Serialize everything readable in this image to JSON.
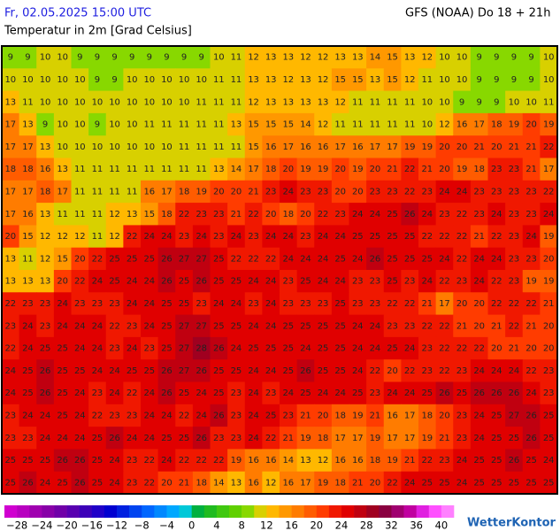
{
  "header": {
    "datetime": "Fr, 02.05.2025 15:00 UTC",
    "model": "GFS (NOAA) Do 18 + 21h",
    "title": "Temperatur in 2m [Grad Celsius]"
  },
  "map": {
    "values": [
      [
        9,
        9,
        10,
        10,
        9,
        9,
        9,
        9,
        9,
        9,
        9,
        9,
        10,
        11,
        12,
        13,
        13,
        12,
        12,
        13,
        13,
        14,
        15,
        13,
        12,
        10,
        10,
        9,
        9,
        9,
        9,
        10
      ],
      [
        10,
        10,
        10,
        10,
        10,
        9,
        9,
        10,
        10,
        10,
        10,
        10,
        11,
        11,
        13,
        13,
        12,
        13,
        12,
        15,
        15,
        13,
        15,
        12,
        11,
        10,
        10,
        9,
        9,
        9,
        9,
        10
      ],
      [
        13,
        11,
        10,
        10,
        10,
        10,
        10,
        10,
        10,
        10,
        10,
        11,
        11,
        11,
        12,
        13,
        13,
        13,
        13,
        12,
        11,
        11,
        11,
        11,
        10,
        10,
        9,
        9,
        9,
        10,
        10,
        11
      ],
      [
        17,
        13,
        9,
        10,
        10,
        9,
        10,
        10,
        11,
        11,
        11,
        11,
        11,
        13,
        15,
        15,
        15,
        14,
        12,
        11,
        11,
        11,
        11,
        11,
        10,
        12,
        16,
        17,
        18,
        19,
        20,
        19
      ],
      [
        17,
        17,
        13,
        10,
        10,
        10,
        10,
        10,
        10,
        10,
        11,
        11,
        11,
        11,
        15,
        16,
        17,
        16,
        16,
        17,
        16,
        17,
        17,
        19,
        19,
        20,
        20,
        21,
        20,
        21,
        21,
        22
      ],
      [
        18,
        18,
        16,
        13,
        11,
        11,
        11,
        11,
        11,
        11,
        11,
        11,
        13,
        14,
        17,
        18,
        20,
        19,
        19,
        20,
        19,
        20,
        21,
        22,
        21,
        20,
        19,
        18,
        23,
        23,
        21,
        17
      ],
      [
        17,
        17,
        18,
        17,
        11,
        11,
        11,
        11,
        16,
        17,
        18,
        19,
        20,
        20,
        21,
        23,
        24,
        23,
        23,
        20,
        20,
        23,
        23,
        22,
        23,
        24,
        24,
        23,
        23,
        23,
        23,
        22
      ],
      [
        17,
        16,
        13,
        11,
        11,
        11,
        12,
        13,
        15,
        18,
        22,
        23,
        23,
        21,
        22,
        20,
        18,
        20,
        22,
        23,
        24,
        24,
        25,
        26,
        24,
        23,
        22,
        23,
        24,
        23,
        23,
        24
      ],
      [
        20,
        15,
        12,
        12,
        12,
        11,
        12,
        22,
        24,
        24,
        23,
        24,
        23,
        24,
        23,
        24,
        24,
        23,
        24,
        24,
        25,
        25,
        25,
        25,
        22,
        22,
        22,
        21,
        22,
        23,
        24,
        19
      ],
      [
        13,
        11,
        12,
        15,
        20,
        22,
        25,
        25,
        25,
        26,
        27,
        27,
        25,
        22,
        22,
        22,
        24,
        24,
        24,
        25,
        24,
        26,
        25,
        25,
        25,
        24,
        22,
        24,
        24,
        23,
        23,
        20
      ],
      [
        13,
        13,
        13,
        20,
        22,
        24,
        25,
        24,
        24,
        26,
        25,
        26,
        25,
        25,
        24,
        24,
        23,
        25,
        24,
        24,
        23,
        23,
        25,
        23,
        24,
        22,
        23,
        24,
        22,
        23,
        19,
        19
      ],
      [
        22,
        23,
        23,
        24,
        23,
        23,
        23,
        24,
        24,
        25,
        25,
        23,
        24,
        24,
        23,
        24,
        23,
        23,
        23,
        25,
        23,
        23,
        22,
        22,
        21,
        17,
        20,
        20,
        22,
        22,
        22,
        21
      ],
      [
        23,
        24,
        23,
        24,
        24,
        24,
        22,
        23,
        24,
        25,
        27,
        27,
        25,
        25,
        24,
        24,
        25,
        25,
        25,
        25,
        24,
        24,
        23,
        23,
        22,
        22,
        21,
        20,
        21,
        22,
        21,
        20
      ],
      [
        22,
        24,
        25,
        25,
        24,
        24,
        23,
        24,
        23,
        25,
        27,
        28,
        26,
        24,
        25,
        25,
        25,
        24,
        25,
        25,
        24,
        24,
        25,
        24,
        23,
        22,
        22,
        22,
        20,
        21,
        20,
        20
      ],
      [
        24,
        25,
        26,
        25,
        25,
        24,
        24,
        25,
        25,
        26,
        27,
        26,
        25,
        25,
        24,
        24,
        25,
        26,
        25,
        25,
        24,
        22,
        20,
        22,
        23,
        22,
        23,
        24,
        24,
        24,
        22,
        23
      ],
      [
        24,
        25,
        26,
        25,
        24,
        23,
        24,
        22,
        24,
        26,
        25,
        24,
        25,
        23,
        24,
        23,
        24,
        25,
        24,
        24,
        25,
        23,
        24,
        24,
        25,
        26,
        25,
        26,
        26,
        26,
        24,
        23
      ],
      [
        23,
        24,
        24,
        25,
        24,
        22,
        23,
        23,
        24,
        24,
        22,
        24,
        26,
        23,
        24,
        25,
        23,
        21,
        20,
        18,
        19,
        21,
        16,
        17,
        18,
        20,
        23,
        24,
        25,
        27,
        26,
        25
      ],
      [
        23,
        23,
        24,
        24,
        24,
        25,
        26,
        24,
        24,
        25,
        25,
        26,
        23,
        23,
        24,
        22,
        21,
        19,
        18,
        17,
        17,
        19,
        17,
        17,
        19,
        21,
        23,
        24,
        25,
        25,
        26,
        25
      ],
      [
        25,
        25,
        25,
        26,
        26,
        25,
        24,
        23,
        22,
        24,
        22,
        22,
        22,
        19,
        16,
        16,
        14,
        13,
        12,
        16,
        16,
        18,
        19,
        21,
        22,
        23,
        24,
        25,
        25,
        26,
        25,
        24
      ],
      [
        25,
        26,
        24,
        25,
        26,
        25,
        24,
        23,
        22,
        20,
        21,
        18,
        14,
        13,
        16,
        12,
        16,
        17,
        19,
        18,
        21,
        20,
        22,
        24,
        25,
        25,
        24,
        25,
        25,
        25,
        25,
        25
      ]
    ]
  },
  "colorbar": {
    "lim": [
      -30,
      42
    ],
    "colors": [
      "#d000d0",
      "#b800c0",
      "#a000b0",
      "#8800a8",
      "#7000a8",
      "#5800b0",
      "#3c00b8",
      "#2000c8",
      "#0000d0",
      "#0020e0",
      "#0044f0",
      "#0066ff",
      "#0088ff",
      "#00a8ff",
      "#00c8d8",
      "#00b040",
      "#20bb20",
      "#40c810",
      "#60d000",
      "#88d800",
      "#d8d000",
      "#ffb800",
      "#ff9800",
      "#ff7c00",
      "#ff5c00",
      "#ff3c00",
      "#f01800",
      "#e00000",
      "#c00010",
      "#a00020",
      "#8a0040",
      "#a00070",
      "#c000a0",
      "#e020e0",
      "#ff50ff",
      "#ff80ff"
    ],
    "ticks": [
      {
        "value": -28,
        "label": "−28"
      },
      {
        "value": -24,
        "label": "−24"
      },
      {
        "value": -20,
        "label": "−20"
      },
      {
        "value": -16,
        "label": "−16"
      },
      {
        "value": -12,
        "label": "−12"
      },
      {
        "value": -8,
        "label": "−8"
      },
      {
        "value": -4,
        "label": "−4"
      },
      0,
      4,
      8,
      12,
      16,
      20,
      24,
      28,
      32,
      36,
      40
    ]
  },
  "logo": "WetterKontor"
}
